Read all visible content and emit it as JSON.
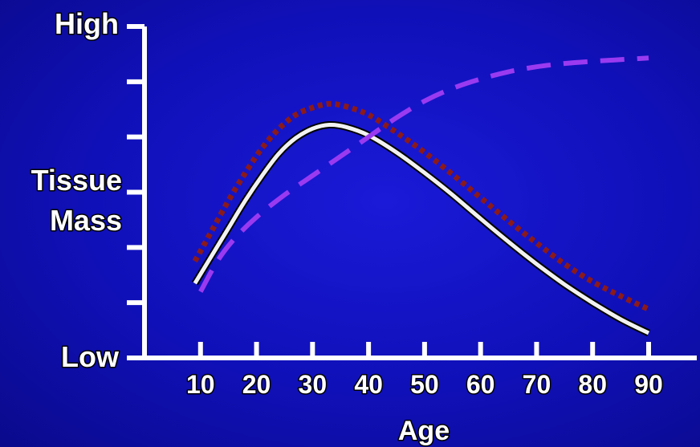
{
  "chart_data": {
    "type": "line",
    "title": "",
    "xlabel": "Age",
    "ylabel": "Tissue Mass",
    "y_tick_labels": {
      "high": "High",
      "low": "Low"
    },
    "x_ticks": [
      10,
      20,
      30,
      40,
      50,
      60,
      70,
      80,
      90
    ],
    "xlim": [
      0,
      95
    ],
    "ylim": [
      0,
      6
    ],
    "grid": false,
    "legend": "none",
    "series": [
      {
        "style": "solid",
        "color": "#f2f2f2",
        "x": [
          9,
          12,
          15,
          18,
          21,
          24,
          27,
          30,
          33,
          36,
          40,
          45,
          50,
          55,
          60,
          65,
          70,
          75,
          80,
          85,
          90
        ],
        "y": [
          1.35,
          1.85,
          2.35,
          2.85,
          3.3,
          3.7,
          3.98,
          4.15,
          4.22,
          4.18,
          4.03,
          3.72,
          3.35,
          2.95,
          2.52,
          2.1,
          1.7,
          1.33,
          1.0,
          0.7,
          0.45
        ]
      },
      {
        "style": "dotted",
        "color": "#8b1a1a",
        "x": [
          9,
          12,
          15,
          18,
          21,
          24,
          27,
          30,
          33,
          36,
          40,
          45,
          50,
          55,
          60,
          65,
          70,
          75,
          80,
          85,
          90
        ],
        "y": [
          1.75,
          2.3,
          2.85,
          3.35,
          3.8,
          4.15,
          4.4,
          4.53,
          4.6,
          4.55,
          4.4,
          4.08,
          3.72,
          3.32,
          2.9,
          2.48,
          2.08,
          1.7,
          1.38,
          1.12,
          0.88
        ]
      },
      {
        "style": "dashed",
        "color": "#9a3af0",
        "x": [
          10,
          13,
          16,
          20,
          25,
          30,
          35,
          40,
          45,
          50,
          55,
          60,
          65,
          70,
          75,
          80,
          85,
          90
        ],
        "y": [
          1.2,
          1.75,
          2.15,
          2.55,
          2.95,
          3.3,
          3.65,
          4.0,
          4.35,
          4.65,
          4.88,
          5.05,
          5.18,
          5.27,
          5.33,
          5.37,
          5.4,
          5.43
        ]
      }
    ]
  }
}
